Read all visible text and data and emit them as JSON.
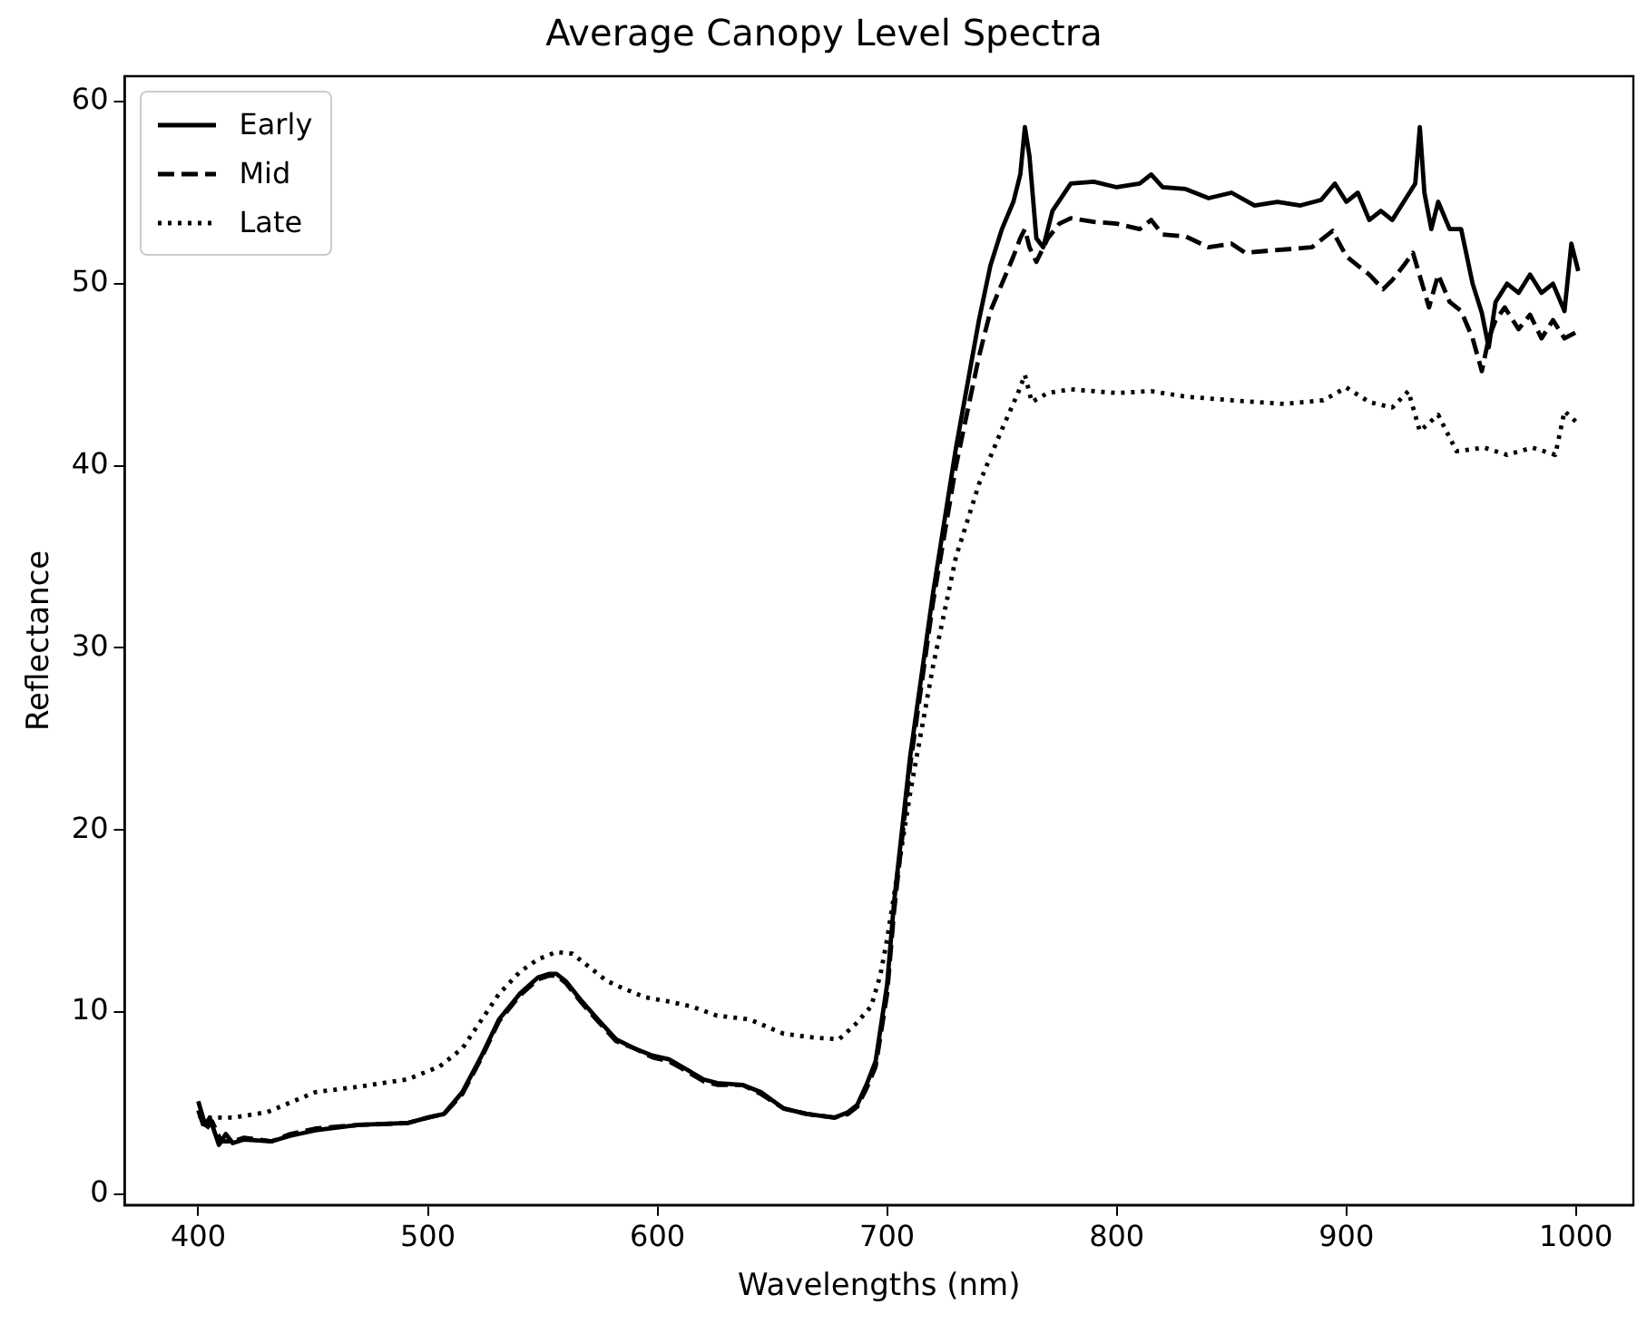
{
  "chart_data": {
    "type": "line",
    "title": "Average Canopy Level Spectra",
    "xlabel": "Wavelengths (nm)",
    "ylabel": "Reflectance",
    "xlim": [
      368,
      1025
    ],
    "ylim": [
      -0.6,
      61.4
    ],
    "xticks": [
      400,
      500,
      600,
      700,
      800,
      900,
      1000
    ],
    "yticks": [
      0,
      10,
      20,
      30,
      40,
      50,
      60
    ],
    "grid": false,
    "legend": "top left",
    "marker": "none",
    "series": [
      {
        "name": "Early",
        "color": "#000000",
        "line_style": "solid",
        "x": [
          400,
          403,
          405,
          409,
          412,
          415,
          420,
          432,
          440,
          451,
          470,
          491,
          500,
          507,
          515,
          523,
          531,
          540,
          548,
          553,
          556,
          560,
          567,
          574,
          582,
          590,
          598,
          605,
          612,
          620,
          626,
          637,
          645,
          655,
          665,
          677,
          683,
          687,
          691,
          695,
          700,
          703,
          710,
          720,
          730,
          740,
          745,
          750,
          755,
          758,
          760,
          762,
          765,
          768,
          772,
          780,
          790,
          800,
          810,
          815,
          820,
          830,
          840,
          850,
          860,
          870,
          880,
          889,
          895,
          900,
          905,
          910,
          915,
          920,
          925,
          930,
          932,
          934,
          937,
          940,
          945,
          950,
          955,
          959,
          962,
          965,
          970,
          975,
          980,
          985,
          990,
          995,
          998,
          1001
        ],
        "values": [
          5.1,
          3.8,
          4.2,
          2.7,
          3.3,
          2.8,
          3.0,
          2.9,
          3.2,
          3.5,
          3.8,
          3.9,
          4.2,
          4.4,
          5.6,
          7.5,
          9.6,
          11.0,
          11.9,
          12.1,
          12.1,
          11.7,
          10.6,
          9.6,
          8.5,
          8.0,
          7.6,
          7.4,
          6.9,
          6.3,
          6.1,
          6.0,
          5.6,
          4.7,
          4.4,
          4.2,
          4.5,
          4.9,
          6.0,
          7.3,
          11.5,
          16.0,
          24.0,
          33.0,
          41.0,
          48.0,
          51.0,
          53.0,
          54.5,
          56.0,
          58.6,
          57.0,
          52.5,
          52.0,
          54.0,
          55.5,
          55.6,
          55.3,
          55.5,
          56.0,
          55.3,
          55.2,
          54.7,
          55.0,
          54.3,
          54.5,
          54.3,
          54.6,
          55.5,
          54.5,
          55.0,
          53.5,
          54.0,
          53.5,
          54.5,
          55.5,
          58.6,
          55.0,
          53.0,
          54.5,
          53.0,
          53.0,
          50.0,
          48.4,
          46.5,
          49.0,
          50.0,
          49.5,
          50.5,
          49.5,
          50.0,
          48.5,
          52.2,
          50.7
        ]
      },
      {
        "name": "Mid",
        "color": "#000000",
        "line_style": "dashed",
        "x": [
          400,
          403,
          406,
          410,
          415,
          420,
          432,
          440,
          451,
          470,
          491,
          500,
          507,
          515,
          523,
          531,
          540,
          548,
          553,
          556,
          560,
          567,
          574,
          582,
          590,
          598,
          605,
          612,
          620,
          626,
          637,
          645,
          655,
          665,
          677,
          683,
          687,
          691,
          695,
          700,
          703,
          710,
          720,
          730,
          740,
          745,
          750,
          755,
          758,
          760,
          762,
          765,
          770,
          775,
          780,
          790,
          800,
          810,
          815,
          820,
          830,
          840,
          850,
          856,
          865,
          875,
          885,
          894,
          900,
          905,
          910,
          916,
          920,
          925,
          929,
          933,
          936,
          940,
          945,
          950,
          955,
          959,
          962,
          965,
          969,
          975,
          980,
          985,
          990,
          995,
          1001
        ],
        "values": [
          4.6,
          3.5,
          4.0,
          2.9,
          2.9,
          3.1,
          2.9,
          3.3,
          3.6,
          3.8,
          3.9,
          4.2,
          4.4,
          5.5,
          7.4,
          9.5,
          10.9,
          11.8,
          12.0,
          12.0,
          11.6,
          10.5,
          9.5,
          8.4,
          8.0,
          7.5,
          7.3,
          6.8,
          6.2,
          6.0,
          6.0,
          5.5,
          4.7,
          4.4,
          4.2,
          4.4,
          4.8,
          5.8,
          7.0,
          11.0,
          15.5,
          23.5,
          32.5,
          40.0,
          46.0,
          48.5,
          50.0,
          51.5,
          52.5,
          53.0,
          52.0,
          51.2,
          52.5,
          53.3,
          53.6,
          53.4,
          53.3,
          53.0,
          53.5,
          52.7,
          52.6,
          52.0,
          52.2,
          51.7,
          51.8,
          51.9,
          52.0,
          52.9,
          51.5,
          51.0,
          50.5,
          49.7,
          50.2,
          51.0,
          51.7,
          50.0,
          48.7,
          50.5,
          49.0,
          48.5,
          47.0,
          45.2,
          47.0,
          48.0,
          48.7,
          47.5,
          48.3,
          47.0,
          48.0,
          47.0,
          47.4
        ]
      },
      {
        "name": "Late",
        "color": "#000000",
        "line_style": "dotted",
        "x": [
          400,
          405,
          415,
          430,
          451,
          470,
          491,
          505,
          515,
          523,
          531,
          540,
          548,
          556,
          563,
          570,
          578,
          585,
          595,
          604,
          615,
          626,
          640,
          655,
          668,
          679,
          686,
          693,
          697,
          700,
          705,
          710,
          720,
          730,
          740,
          750,
          757,
          760,
          763,
          770,
          780,
          800,
          815,
          830,
          850,
          873,
          890,
          900,
          910,
          920,
          927,
          932,
          940,
          948,
          960,
          970,
          981,
          991,
          995,
          1001
        ],
        "values": [
          4.3,
          4.2,
          4.2,
          4.5,
          5.6,
          5.9,
          6.3,
          7.0,
          8.0,
          9.5,
          11.0,
          12.2,
          12.9,
          13.3,
          13.2,
          12.5,
          11.7,
          11.3,
          10.8,
          10.6,
          10.3,
          9.8,
          9.6,
          8.8,
          8.6,
          8.5,
          9.3,
          10.3,
          12.0,
          14.0,
          18.0,
          22.0,
          29.0,
          35.0,
          39.0,
          42.0,
          44.0,
          45.0,
          43.5,
          44.0,
          44.2,
          44.0,
          44.1,
          43.8,
          43.6,
          43.4,
          43.6,
          44.3,
          43.5,
          43.2,
          44.1,
          41.9,
          42.8,
          40.8,
          41.0,
          40.6,
          41.0,
          40.6,
          43.0,
          42.3
        ]
      }
    ]
  }
}
